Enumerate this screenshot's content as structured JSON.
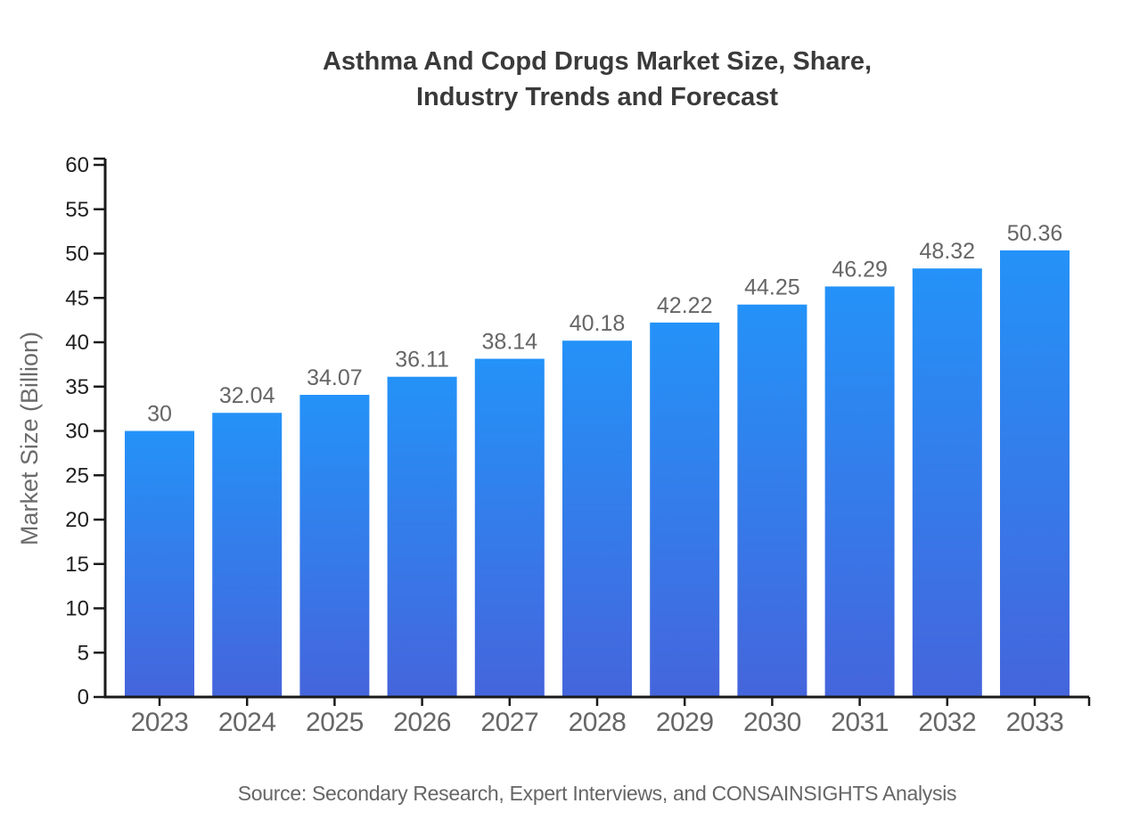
{
  "chart_data": {
    "type": "bar",
    "title": "Asthma And Copd Drugs Market Size, Share, Industry Trends and Forecast",
    "title_lines": [
      "Asthma And Copd Drugs Market Size, Share,",
      "Industry Trends and Forecast"
    ],
    "categories": [
      "2023",
      "2024",
      "2025",
      "2026",
      "2027",
      "2028",
      "2029",
      "2030",
      "2031",
      "2032",
      "2033"
    ],
    "values": [
      30,
      32.04,
      34.07,
      36.11,
      38.14,
      40.18,
      42.22,
      44.25,
      46.29,
      48.32,
      50.36
    ],
    "value_labels": [
      "30",
      "32.04",
      "34.07",
      "36.11",
      "38.14",
      "40.18",
      "42.22",
      "44.25",
      "46.29",
      "48.32",
      "50.36"
    ],
    "xlabel": "",
    "ylabel": "Market Size (Billion)",
    "ylim": [
      0,
      60
    ],
    "ytick_step": 5,
    "grid": false,
    "legend": false,
    "bar_gradient_top": "#2492F8",
    "bar_gradient_bottom": "#4565DC"
  },
  "source_note": "Source: Secondary Research, Expert Interviews, and CONSAINSIGHTS Analysis",
  "colors": {
    "background": "#FFFFFF",
    "title": "#3A3A3A",
    "axis": "#1A1A1A",
    "y_tick_label": "#1F1F1F",
    "value_label": "#666666",
    "category_label": "#666666",
    "axis_title": "#6B6B6B",
    "source": "#666666",
    "bar_top": "#2492F8",
    "bar_bottom": "#4565DC"
  }
}
